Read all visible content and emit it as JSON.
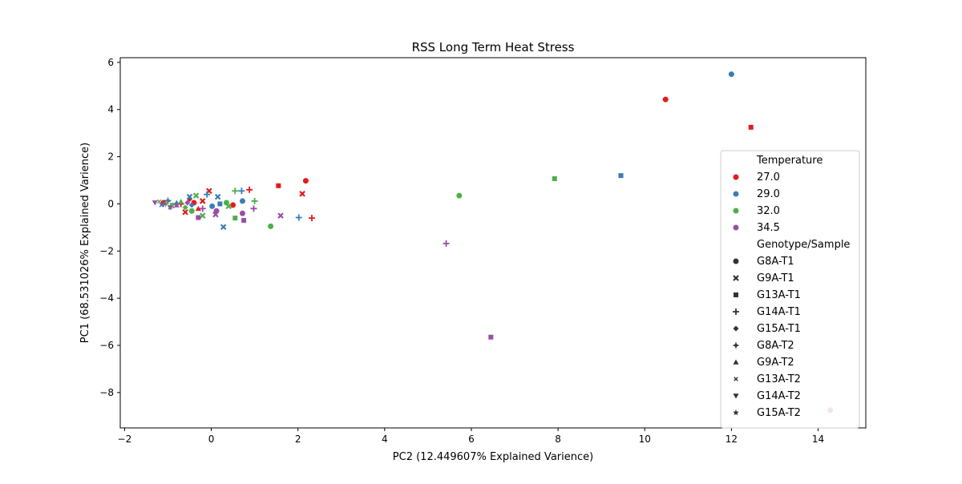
{
  "chart_data": {
    "type": "scatter",
    "title": "RSS Long Term Heat Stress",
    "xlabel": "PC2 (12.449607% Explained Varience)",
    "ylabel": "PC1 (68.531026% Explained Varience)",
    "xlim": [
      -2.1,
      15.1
    ],
    "ylim": [
      -9.5,
      6.2
    ],
    "xticks": [
      "−2",
      "0",
      "2",
      "4",
      "6",
      "8",
      "10",
      "12",
      "14"
    ],
    "xtick_values": [
      -2,
      0,
      2,
      4,
      6,
      8,
      10,
      12,
      14
    ],
    "yticks": [
      "−8",
      "−6",
      "−4",
      "−2",
      "0",
      "2",
      "4",
      "6"
    ],
    "ytick_values": [
      -8,
      -6,
      -4,
      -2,
      0,
      2,
      4,
      6
    ],
    "grid": false,
    "legend_position": "lower-right",
    "legend": {
      "hue_title": "Temperature",
      "hue_entries": [
        {
          "label": "27.0",
          "color": "#e41a1c"
        },
        {
          "label": "29.0",
          "color": "#377eb8"
        },
        {
          "label": "32.0",
          "color": "#4daf4a"
        },
        {
          "label": "34.5",
          "color": "#984ea3"
        }
      ],
      "style_title": "Genotype/Sample",
      "style_entries": [
        {
          "label": "G8A-T1",
          "marker": "circle"
        },
        {
          "label": "G9A-T1",
          "marker": "x"
        },
        {
          "label": "G13A-T1",
          "marker": "square"
        },
        {
          "label": "G14A-T1",
          "marker": "plus"
        },
        {
          "label": "G15A-T1",
          "marker": "diamond"
        },
        {
          "label": "G8A-T2",
          "marker": "star4"
        },
        {
          "label": "G9A-T2",
          "marker": "triangle-up"
        },
        {
          "label": "G13A-T2",
          "marker": "x-small"
        },
        {
          "label": "G14A-T2",
          "marker": "triangle-down"
        },
        {
          "label": "G15A-T2",
          "marker": "star"
        }
      ]
    },
    "series": [
      {
        "name": "27.0",
        "color": "#e41a1c",
        "points": [
          {
            "x": 10.48,
            "y": 4.43,
            "m": "circle"
          },
          {
            "x": 12.45,
            "y": 3.25,
            "m": "square"
          },
          {
            "x": 2.18,
            "y": 0.98,
            "m": "circle"
          },
          {
            "x": 1.55,
            "y": 0.77,
            "m": "square"
          },
          {
            "x": 2.1,
            "y": 0.43,
            "m": "x"
          },
          {
            "x": 2.32,
            "y": -0.6,
            "m": "plus"
          },
          {
            "x": 0.88,
            "y": 0.6,
            "m": "plus"
          },
          {
            "x": -0.05,
            "y": 0.55,
            "m": "x"
          },
          {
            "x": -0.2,
            "y": 0.12,
            "m": "x"
          },
          {
            "x": -0.4,
            "y": 0.05,
            "m": "circle"
          },
          {
            "x": -0.6,
            "y": -0.35,
            "m": "x"
          },
          {
            "x": -0.7,
            "y": 0.0,
            "m": "plus"
          },
          {
            "x": -0.9,
            "y": -0.1,
            "m": "x-small"
          },
          {
            "x": -1.0,
            "y": 0.12,
            "m": "star4"
          },
          {
            "x": 0.5,
            "y": -0.05,
            "m": "circle"
          },
          {
            "x": -0.3,
            "y": -0.2,
            "m": "triangle-up"
          },
          {
            "x": -1.1,
            "y": 0.05,
            "m": "circle"
          },
          {
            "x": -0.5,
            "y": 0.2,
            "m": "diamond"
          }
        ]
      },
      {
        "name": "29.0",
        "color": "#377eb8",
        "points": [
          {
            "x": 12.0,
            "y": 5.5,
            "m": "circle"
          },
          {
            "x": 9.45,
            "y": 1.2,
            "m": "square"
          },
          {
            "x": 2.02,
            "y": -0.58,
            "m": "plus"
          },
          {
            "x": 0.28,
            "y": -0.98,
            "m": "x"
          },
          {
            "x": 0.72,
            "y": 0.12,
            "m": "circle"
          },
          {
            "x": 0.7,
            "y": 0.55,
            "m": "plus"
          },
          {
            "x": 0.15,
            "y": 0.3,
            "m": "x"
          },
          {
            "x": -0.1,
            "y": 0.4,
            "m": "plus"
          },
          {
            "x": 0.2,
            "y": 0.0,
            "m": "square"
          },
          {
            "x": 0.02,
            "y": -0.1,
            "m": "circle"
          },
          {
            "x": -0.5,
            "y": 0.3,
            "m": "x"
          },
          {
            "x": -0.8,
            "y": 0.05,
            "m": "triangle-up"
          },
          {
            "x": -1.0,
            "y": 0.15,
            "m": "star4"
          },
          {
            "x": -1.15,
            "y": -0.05,
            "m": "x-small"
          },
          {
            "x": -0.45,
            "y": -0.05,
            "m": "diamond"
          },
          {
            "x": -0.95,
            "y": -0.15,
            "m": "triangle-down"
          }
        ]
      },
      {
        "name": "32.0",
        "color": "#4daf4a",
        "points": [
          {
            "x": 7.92,
            "y": 1.07,
            "m": "square"
          },
          {
            "x": 5.72,
            "y": 0.35,
            "m": "circle"
          },
          {
            "x": 1.37,
            "y": -0.95,
            "m": "circle"
          },
          {
            "x": 1.0,
            "y": 0.12,
            "m": "plus"
          },
          {
            "x": 0.55,
            "y": 0.55,
            "m": "plus"
          },
          {
            "x": 0.55,
            "y": -0.6,
            "m": "square"
          },
          {
            "x": 0.35,
            "y": 0.05,
            "m": "circle"
          },
          {
            "x": 0.4,
            "y": -0.1,
            "m": "x"
          },
          {
            "x": -0.35,
            "y": 0.35,
            "m": "x"
          },
          {
            "x": -0.2,
            "y": -0.5,
            "m": "x"
          },
          {
            "x": -0.45,
            "y": -0.3,
            "m": "circle"
          },
          {
            "x": -0.7,
            "y": 0.1,
            "m": "triangle-up"
          },
          {
            "x": -1.05,
            "y": 0.0,
            "m": "star4"
          },
          {
            "x": -1.2,
            "y": 0.1,
            "m": "x-small"
          },
          {
            "x": -0.6,
            "y": -0.15,
            "m": "diamond"
          },
          {
            "x": -0.9,
            "y": -0.05,
            "m": "triangle-down"
          }
        ]
      },
      {
        "name": "34.5",
        "color": "#984ea3",
        "points": [
          {
            "x": 6.45,
            "y": -5.65,
            "m": "square"
          },
          {
            "x": 5.42,
            "y": -1.68,
            "m": "plus"
          },
          {
            "x": 14.28,
            "y": -8.75,
            "m": "circle"
          },
          {
            "x": 1.6,
            "y": -0.5,
            "m": "x"
          },
          {
            "x": 0.98,
            "y": -0.2,
            "m": "plus"
          },
          {
            "x": 0.72,
            "y": -0.4,
            "m": "circle"
          },
          {
            "x": 0.75,
            "y": -0.7,
            "m": "square"
          },
          {
            "x": 0.12,
            "y": -0.3,
            "m": "circle"
          },
          {
            "x": 0.1,
            "y": -0.45,
            "m": "x"
          },
          {
            "x": -0.3,
            "y": -0.58,
            "m": "square"
          },
          {
            "x": -0.2,
            "y": -0.2,
            "m": "plus"
          },
          {
            "x": -0.8,
            "y": -0.05,
            "m": "triangle-up"
          },
          {
            "x": -0.95,
            "y": -0.15,
            "m": "x-small"
          },
          {
            "x": -1.1,
            "y": 0.0,
            "m": "star4"
          },
          {
            "x": -1.3,
            "y": 0.05,
            "m": "triangle-down"
          },
          {
            "x": -0.55,
            "y": 0.05,
            "m": "diamond"
          }
        ]
      }
    ]
  }
}
